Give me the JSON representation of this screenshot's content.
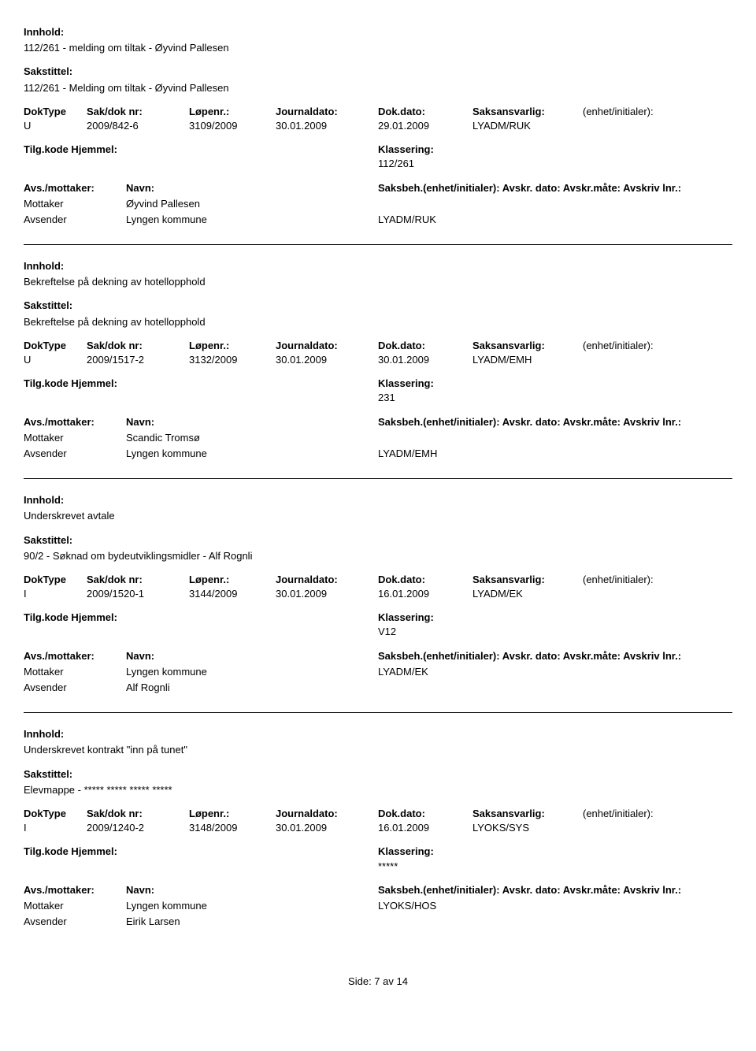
{
  "labels": {
    "innhold": "Innhold:",
    "sakstittel": "Sakstittel:",
    "doktype": "DokType",
    "sakdok": "Sak/dok nr:",
    "lopenr": "Løpenr.:",
    "journaldato": "Journaldato:",
    "dokdato": "Dok.dato:",
    "saksansvarlig": "Saksansvarlig:",
    "enhet": "(enhet/initialer):",
    "tilgkode": "Tilg.kode Hjemmel:",
    "klassering": "Klassering:",
    "avsmottaker": "Avs./mottaker:",
    "navn": "Navn:",
    "saksbeh": "Saksbeh.(enhet/initialer): Avskr. dato:  Avskr.måte: Avskriv lnr.:",
    "mottaker": "Mottaker",
    "avsender": "Avsender"
  },
  "entries": [
    {
      "innhold": "112/261 - melding om tiltak - Øyvind Pallesen",
      "sakstittel": "112/261 - Melding om tiltak - Øyvind Pallesen",
      "doktype": "U",
      "sakdok": "2009/842-6",
      "lopenr": "3109/2009",
      "journaldato": "30.01.2009",
      "dokdato": "29.01.2009",
      "saksansvarlig": "LYADM/RUK",
      "klassering": "112/261",
      "mottaker_navn": "Øyvind Pallesen",
      "mottaker_beh": "",
      "avsender_navn": "Lyngen kommune",
      "avsender_beh": "LYADM/RUK"
    },
    {
      "innhold": "Bekreftelse på dekning av hotellopphold",
      "sakstittel": "Bekreftelse på dekning av hotellopphold",
      "doktype": "U",
      "sakdok": "2009/1517-2",
      "lopenr": "3132/2009",
      "journaldato": "30.01.2009",
      "dokdato": "30.01.2009",
      "saksansvarlig": "LYADM/EMH",
      "klassering": "231",
      "mottaker_navn": "Scandic Tromsø",
      "mottaker_beh": "",
      "avsender_navn": "Lyngen kommune",
      "avsender_beh": "LYADM/EMH"
    },
    {
      "innhold": "Underskrevet avtale",
      "sakstittel": "90/2 - Søknad om bydeutviklingsmidler - Alf Rognli",
      "doktype": "I",
      "sakdok": "2009/1520-1",
      "lopenr": "3144/2009",
      "journaldato": "30.01.2009",
      "dokdato": "16.01.2009",
      "saksansvarlig": "LYADM/EK",
      "klassering": "V12",
      "mottaker_navn": "Lyngen kommune",
      "mottaker_beh": "LYADM/EK",
      "avsender_navn": "Alf Rognli",
      "avsender_beh": ""
    },
    {
      "innhold": "Underskrevet kontrakt \"inn på tunet\"",
      "sakstittel": "Elevmappe - ***** ***** ***** *****",
      "doktype": "I",
      "sakdok": "2009/1240-2",
      "lopenr": "3148/2009",
      "journaldato": "30.01.2009",
      "dokdato": "16.01.2009",
      "saksansvarlig": "LYOKS/SYS",
      "klassering": "*****",
      "mottaker_navn": "Lyngen kommune",
      "mottaker_beh": "LYOKS/HOS",
      "avsender_navn": "Eirik Larsen",
      "avsender_beh": ""
    }
  ],
  "footer": "Side:   7 av  14"
}
